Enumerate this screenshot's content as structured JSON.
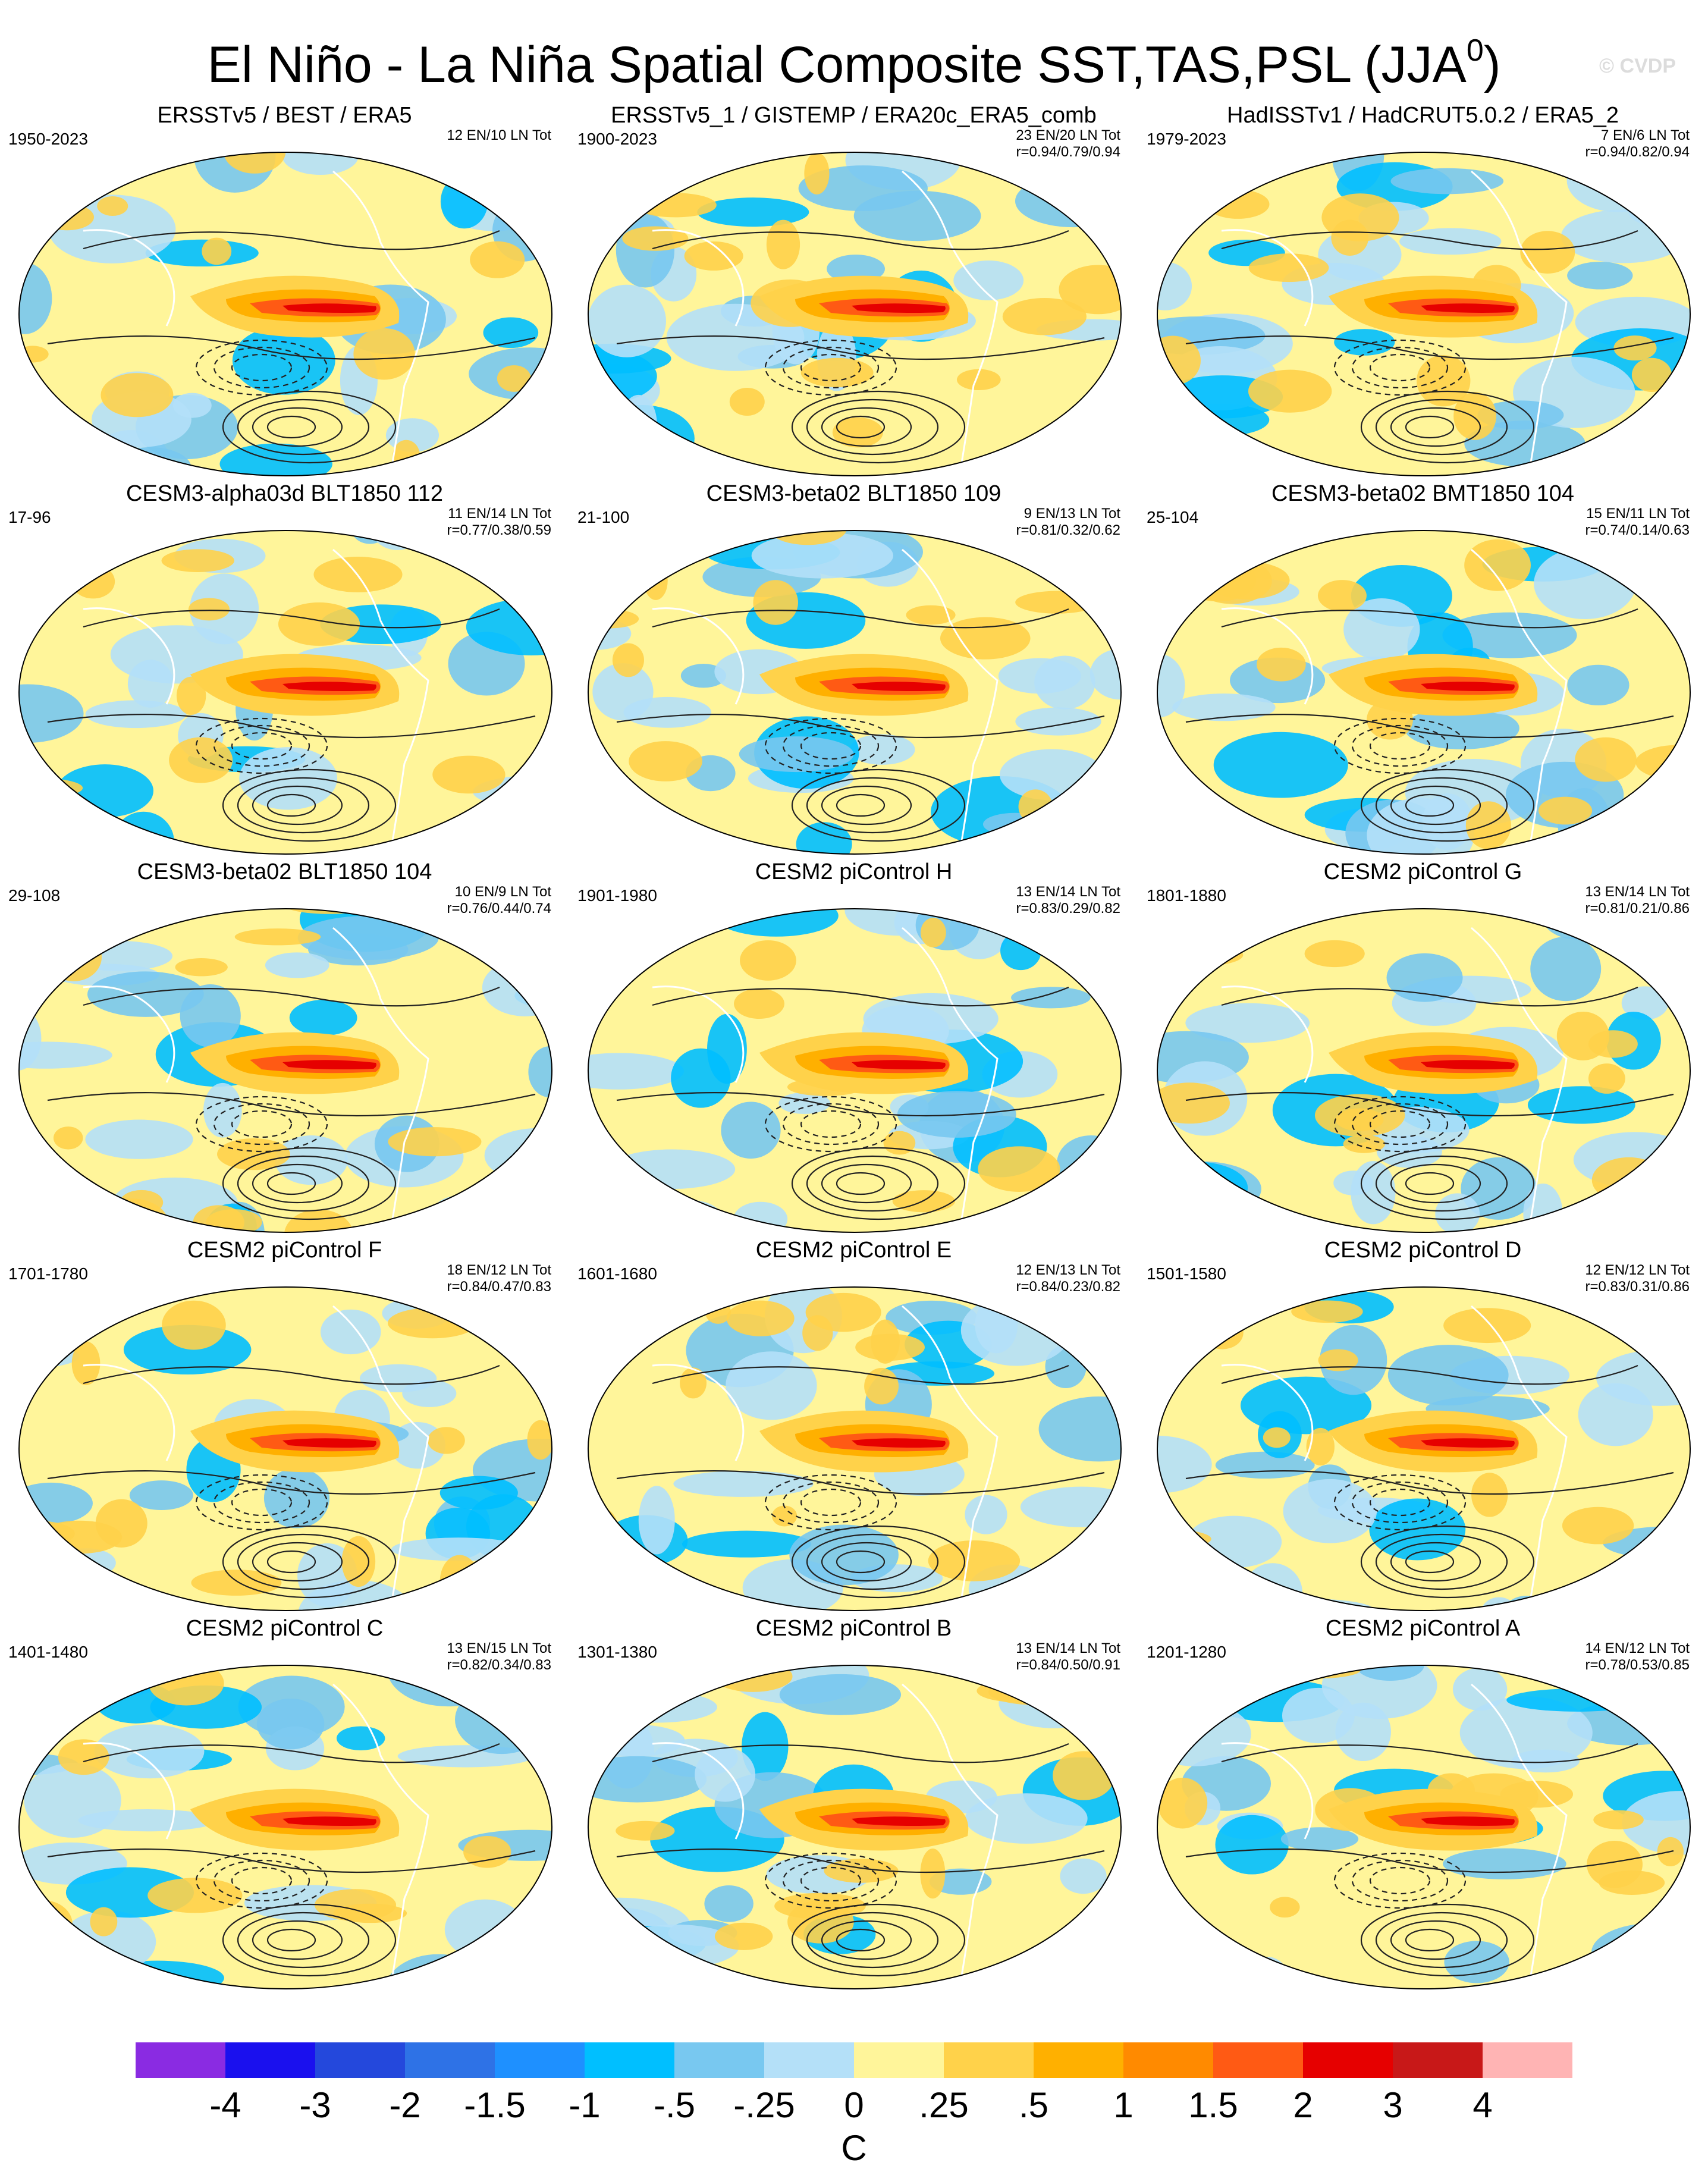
{
  "title": {
    "text": "El Niño - La Niña Spatial Composite SST,TAS,PSL (JJA",
    "superscript": "0",
    "close": ")"
  },
  "watermark": "© CVDP",
  "colorbar": {
    "colors": [
      "#8a2be2",
      "#1a10ee",
      "#2448dc",
      "#2e72e6",
      "#1e90ff",
      "#00bfff",
      "#78c8f0",
      "#b4e0f8",
      "#fff59a",
      "#ffd24a",
      "#ffb000",
      "#ff8a00",
      "#ff5a14",
      "#e60000",
      "#c81818",
      "#ffb4b4"
    ],
    "labels": [
      "-4",
      "-3",
      "-2",
      "-1.5",
      "-1",
      "-.5",
      "-.25",
      "0",
      ".25",
      ".5",
      "1",
      "1.5",
      "2",
      "3",
      "4"
    ],
    "units": "C"
  },
  "panels": [
    {
      "title": "ERSSTv5 / BEST / ERA5",
      "period": "1950-2023",
      "counts": "12 EN/10 LN Tot",
      "corr": ""
    },
    {
      "title": "ERSSTv5_1 / GISTEMP / ERA20c_ERA5_comb",
      "period": "1900-2023",
      "counts": "23 EN/20 LN Tot",
      "corr": "r=0.94/0.79/0.94"
    },
    {
      "title": "HadISSTv1 / HadCRUT5.0.2 / ERA5_2",
      "period": "1979-2023",
      "counts": "7 EN/6 LN Tot",
      "corr": "r=0.94/0.82/0.94"
    },
    {
      "title": "CESM3-alpha03d BLT1850 112",
      "period": "17-96",
      "counts": "11 EN/14 LN Tot",
      "corr": "r=0.77/0.38/0.59"
    },
    {
      "title": "CESM3-beta02 BLT1850 109",
      "period": "21-100",
      "counts": "9 EN/13 LN Tot",
      "corr": "r=0.81/0.32/0.62"
    },
    {
      "title": "CESM3-beta02 BMT1850 104",
      "period": "25-104",
      "counts": "15 EN/11 LN Tot",
      "corr": "r=0.74/0.14/0.63"
    },
    {
      "title": "CESM3-beta02 BLT1850 104",
      "period": "29-108",
      "counts": "10 EN/9 LN Tot",
      "corr": "r=0.76/0.44/0.74"
    },
    {
      "title": "CESM2 piControl H",
      "period": "1901-1980",
      "counts": "13 EN/14 LN Tot",
      "corr": "r=0.83/0.29/0.82"
    },
    {
      "title": "CESM2 piControl G",
      "period": "1801-1880",
      "counts": "13 EN/14 LN Tot",
      "corr": "r=0.81/0.21/0.86"
    },
    {
      "title": "CESM2 piControl F",
      "period": "1701-1780",
      "counts": "18 EN/12 LN Tot",
      "corr": "r=0.84/0.47/0.83"
    },
    {
      "title": "CESM2 piControl E",
      "period": "1601-1680",
      "counts": "12 EN/13 LN Tot",
      "corr": "r=0.84/0.23/0.82"
    },
    {
      "title": "CESM2 piControl D",
      "period": "1501-1580",
      "counts": "12 EN/12 LN Tot",
      "corr": "r=0.83/0.31/0.86"
    },
    {
      "title": "CESM2 piControl C",
      "period": "1401-1480",
      "counts": "13 EN/15 LN Tot",
      "corr": "r=0.82/0.34/0.83"
    },
    {
      "title": "CESM2 piControl B",
      "period": "1301-1380",
      "counts": "13 EN/14 LN Tot",
      "corr": "r=0.84/0.50/0.91"
    },
    {
      "title": "CESM2 piControl A",
      "period": "1201-1280",
      "counts": "14 EN/12 LN Tot",
      "corr": "r=0.78/0.53/0.85"
    }
  ]
}
